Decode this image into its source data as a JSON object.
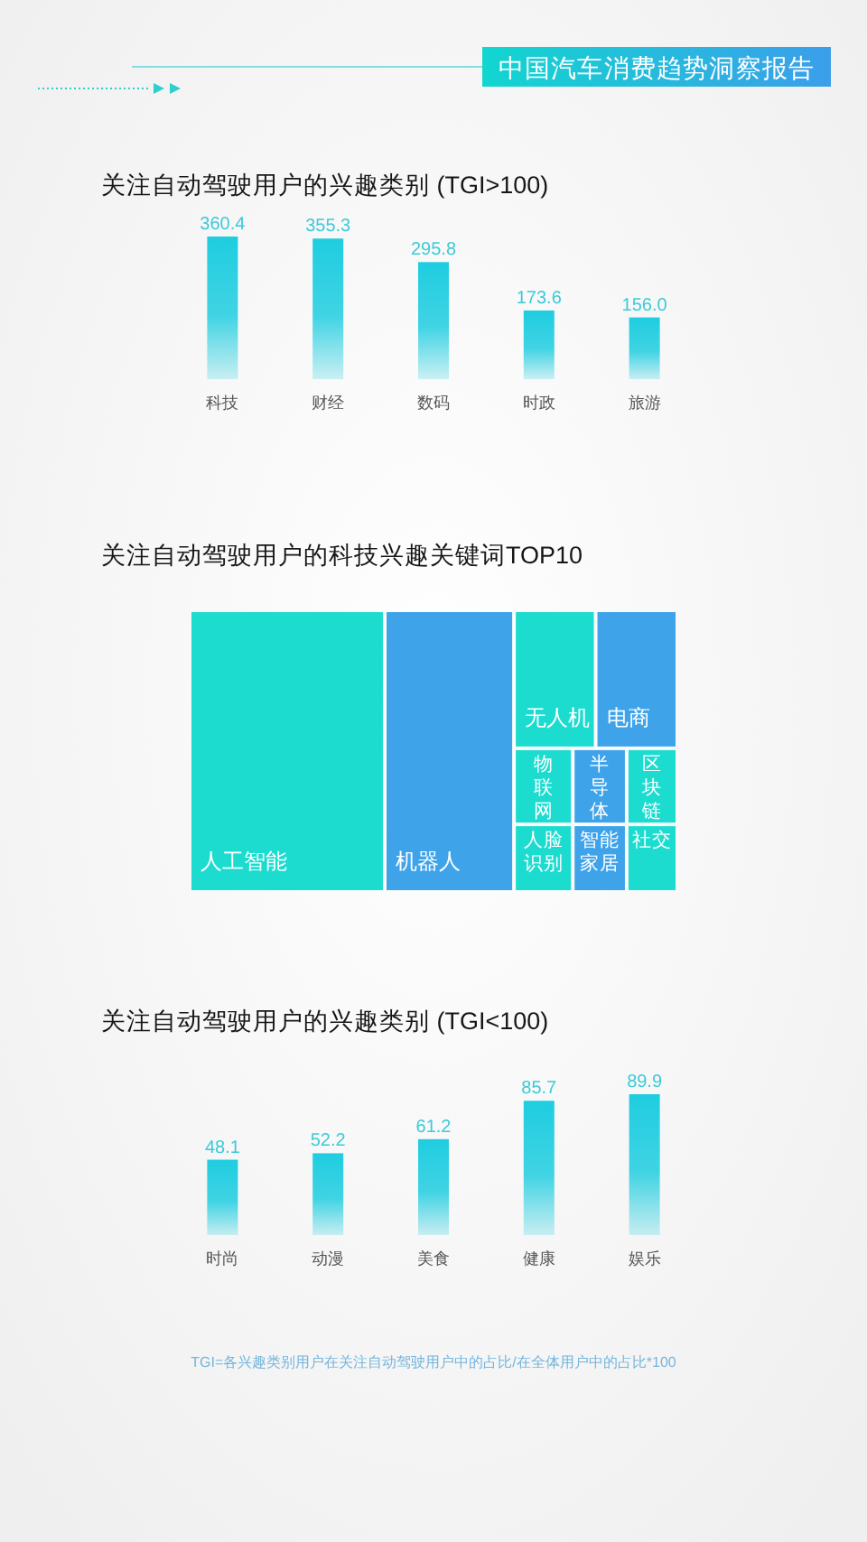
{
  "chart_data": [
    {
      "type": "bar",
      "title": "关注自动驾驶用户的兴趣类别 (TGI>100)",
      "categories": [
        "科技",
        "财经",
        "数码",
        "时政",
        "旅游"
      ],
      "values": [
        360.4,
        355.3,
        295.8,
        173.6,
        156.0
      ],
      "value_labels": [
        "360.4",
        "355.3",
        "295.8",
        "173.6",
        "156.0"
      ],
      "color": "#1fcde0",
      "annotations": [
        "中国汽车消费趋势洞察报告"
      ]
    },
    {
      "type": "other",
      "title": "关注自动驾驶用户的科技兴趣关键词TOP10",
      "categories": [
        "人工智能",
        "机器人",
        "无人机",
        "电商",
        "物联网",
        "半导体",
        "区块链",
        "人脸识别",
        "智能家居",
        "社交"
      ],
      "colors": [
        "#1cdcd0",
        "#3fa3ea",
        "#1cdcd0",
        "#3fa3ea",
        "#1cdcd0",
        "#3fa3ea",
        "#1cdcd0",
        "#1cdcd0",
        "#3fa3ea",
        "#1cdcd0"
      ]
    },
    {
      "type": "bar",
      "title": "关注自动驾驶用户的兴趣类别 (TGI<100)",
      "categories": [
        "时尚",
        "动漫",
        "美食",
        "健康",
        "娱乐"
      ],
      "values": [
        48.1,
        52.2,
        61.2,
        85.7,
        89.9
      ],
      "data_labels": true,
      "color": "#1fcde0",
      "annotations": [
        "TGI=各兴趣类别用户在关注自动驾驶用户中的占比/在全体用户中的占比*100"
      ]
    }
  ]
}
